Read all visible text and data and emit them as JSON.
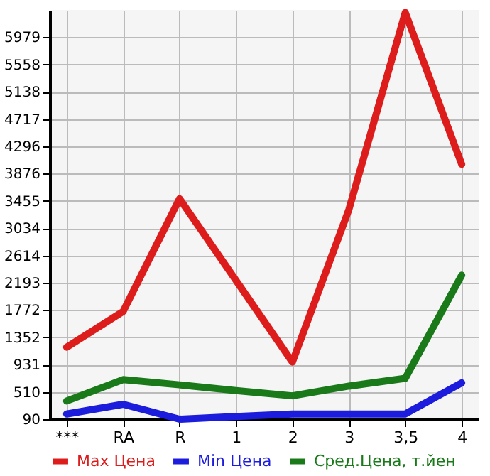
{
  "chart_data": {
    "type": "line",
    "categories": [
      "***",
      "RA",
      "R",
      "1",
      "2",
      "3",
      "3,5",
      "4"
    ],
    "series": [
      {
        "name": "Max Цена",
        "color": "#dd1c1c",
        "values": [
          1200,
          1750,
          3490,
          2230,
          970,
          3320,
          6360,
          4020
        ]
      },
      {
        "name": "Min Цена",
        "color": "#1c1cdd",
        "values": [
          170,
          320,
          90,
          130,
          170,
          170,
          170,
          650
        ]
      },
      {
        "name": "Сред.Цена, т.йен",
        "color": "#1a7a1a",
        "values": [
          370,
          700,
          620,
          530,
          450,
          600,
          720,
          2310
        ]
      }
    ],
    "ylim": [
      90,
      6400
    ],
    "yticks": [
      90,
      510,
      931,
      1352,
      1772,
      2193,
      2614,
      3034,
      3455,
      3876,
      4296,
      4717,
      5138,
      5558,
      5979
    ],
    "grid": true,
    "legend": "bottom",
    "marker": "none",
    "line_style": "solid"
  }
}
